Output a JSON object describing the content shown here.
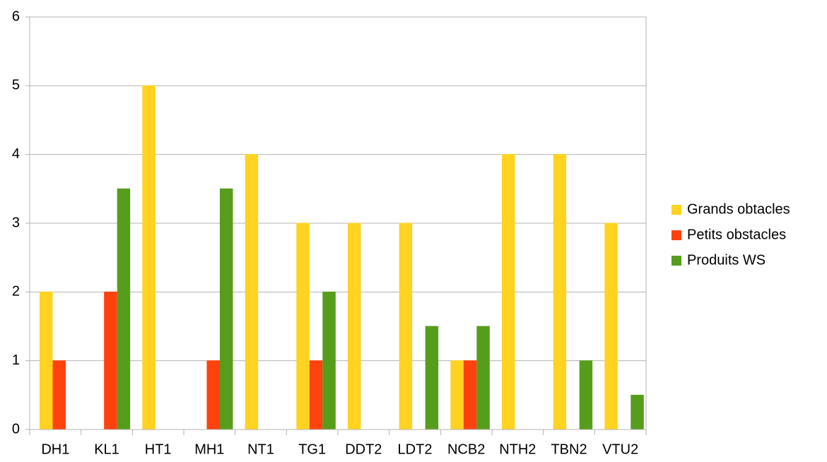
{
  "chart_data": {
    "type": "bar",
    "categories": [
      "DH1",
      "KL1",
      "HT1",
      "MH1",
      "NT1",
      "TG1",
      "DDT2",
      "LDT2",
      "NCB2",
      "NTH2",
      "TBN2",
      "VTU2"
    ],
    "series": [
      {
        "name": "Grands obtacles",
        "color": "#ffd320",
        "values": [
          2,
          0,
          5,
          0,
          4,
          3,
          3,
          3,
          1,
          4,
          4,
          3
        ]
      },
      {
        "name": "Petits obstacles",
        "color": "#ff420e",
        "values": [
          1,
          2,
          0,
          1,
          0,
          1,
          0,
          0,
          1,
          0,
          0,
          0
        ]
      },
      {
        "name": "Produits WS",
        "color": "#579d1c",
        "values": [
          0,
          3.5,
          0,
          3.5,
          0,
          2,
          0,
          1.5,
          1.5,
          0,
          1,
          0.5
        ]
      }
    ],
    "ylim": [
      0,
      6
    ],
    "yticks": [
      0,
      1,
      2,
      3,
      4,
      5,
      6
    ],
    "grid": true,
    "legend": "right"
  }
}
